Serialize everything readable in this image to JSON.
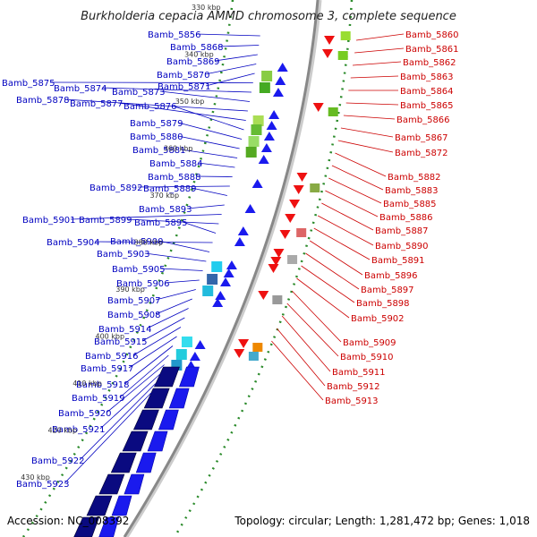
{
  "title": "Burkholderia cepacia AMMD chromosome 3, complete sequence",
  "footer": {
    "accession": "Accession: NC_008392",
    "summary": "Topology: circular; Length: 1,281,472 bp; Genes: 1,018"
  },
  "colors": {
    "left_labels": "#0000c0",
    "right_labels": "#cc0000",
    "forward_genes": "#1a1aee",
    "reverse_genes": "#ee1111",
    "dark_blocks": "#0a0a80",
    "tick_dots": "#2a8a2a",
    "backbone": "#888888"
  },
  "kbp_ticks": [
    "330 kbp",
    "340 kbp",
    "350 kbp",
    "360 kbp",
    "370 kbp",
    "380 kbp",
    "390 kbp",
    "400 kbp",
    "410 kbp",
    "420 kbp",
    "430 kbp"
  ],
  "left_genes": [
    "Bamb_5856",
    "Bamb_5868",
    "Bamb_5869",
    "Bamb_5870",
    "Bamb_5871",
    "Bamb_5875",
    "Bamb_5874",
    "Bamb_5873",
    "Bamb_5878",
    "Bamb_5877",
    "Bamb_5876",
    "Bamb_5879",
    "Bamb_5880",
    "Bamb_5881",
    "Bamb_5884",
    "Bamb_5888",
    "Bamb_5892",
    "Bamb_5889",
    "Bamb_5893",
    "Bamb_5901",
    "Bamb_5899",
    "Bamb_5895",
    "Bamb_5904",
    "Bamb_5900",
    "Bamb_5903",
    "Bamb_5905",
    "Bamb_5906",
    "Bamb_5907",
    "Bamb_5908",
    "Bamb_5914",
    "Bamb_5915",
    "Bamb_5916",
    "Bamb_5917",
    "Bamb_5918",
    "Bamb_5919",
    "Bamb_5920",
    "Bamb_5921",
    "Bamb_5922",
    "Bamb_5923"
  ],
  "right_genes": [
    "Bamb_5860",
    "Bamb_5861",
    "Bamb_5862",
    "Bamb_5863",
    "Bamb_5864",
    "Bamb_5865",
    "Bamb_5866",
    "Bamb_5867",
    "Bamb_5872",
    "Bamb_5882",
    "Bamb_5883",
    "Bamb_5885",
    "Bamb_5886",
    "Bamb_5887",
    "Bamb_5890",
    "Bamb_5891",
    "Bamb_5896",
    "Bamb_5897",
    "Bamb_5898",
    "Bamb_5902",
    "Bamb_5909",
    "Bamb_5910",
    "Bamb_5911",
    "Bamb_5912",
    "Bamb_5913"
  ]
}
